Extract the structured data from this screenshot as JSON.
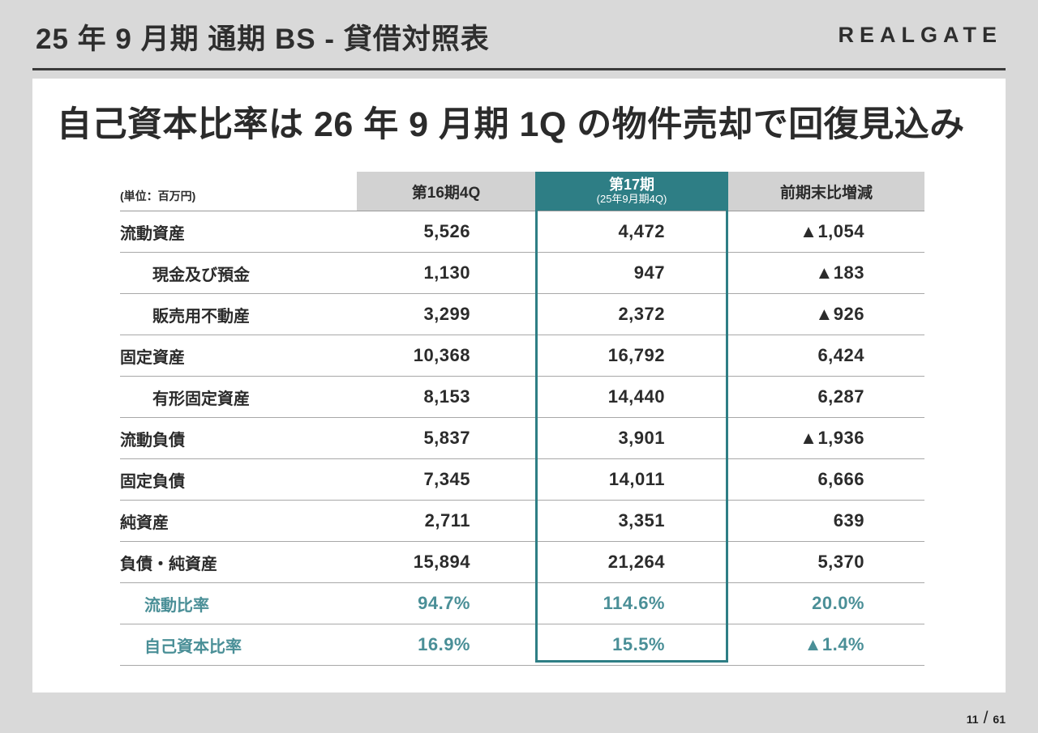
{
  "header": {
    "title": "25 年 9 月期 通期 BS - 貸借対照表",
    "logo": "REALGATE"
  },
  "card": {
    "heading": "自己資本比率は 26 年 9 月期 1Q の物件売却で回復見込み"
  },
  "table": {
    "unit_label": "(単位：百万円)",
    "col_prev": "第16期4Q",
    "col_curr_line1": "第17期",
    "col_curr_line2": "(25年9月期4Q)",
    "col_diff": "前期末比増減",
    "rows": [
      {
        "label": "流動資産",
        "prev": "5,526",
        "curr": "4,472",
        "diff": "▲1,054"
      },
      {
        "label": "現金及び預金",
        "prev": "1,130",
        "curr": "947",
        "diff": "▲183"
      },
      {
        "label": "販売用不動産",
        "prev": "3,299",
        "curr": "2,372",
        "diff": "▲926"
      },
      {
        "label": "固定資産",
        "prev": "10,368",
        "curr": "16,792",
        "diff": "6,424"
      },
      {
        "label": "有形固定資産",
        "prev": "8,153",
        "curr": "14,440",
        "diff": "6,287"
      },
      {
        "label": "流動負債",
        "prev": "5,837",
        "curr": "3,901",
        "diff": "▲1,936"
      },
      {
        "label": "固定負債",
        "prev": "7,345",
        "curr": "14,011",
        "diff": "6,666"
      },
      {
        "label": "純資産",
        "prev": "2,711",
        "curr": "3,351",
        "diff": "639"
      },
      {
        "label": "負債・純資産",
        "prev": "15,894",
        "curr": "21,264",
        "diff": "5,370"
      },
      {
        "label": "流動比率",
        "prev": "94.7%",
        "curr": "114.6%",
        "diff": "20.0%"
      },
      {
        "label": "自己資本比率",
        "prev": "16.9%",
        "curr": "15.5%",
        "diff": "▲1.4%"
      }
    ]
  },
  "colors": {
    "teal_accent": "#2e7e85",
    "teal_text": "#4a8f97",
    "header_gray": "#d2d2d2",
    "page_bg": "#d9d9d9"
  },
  "footer": {
    "page": "11",
    "separator": "/",
    "total": "61"
  }
}
